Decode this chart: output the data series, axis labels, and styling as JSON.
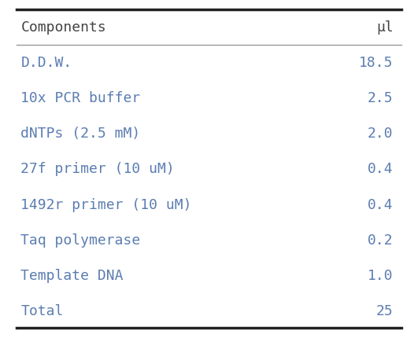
{
  "header": [
    "Components",
    "μl"
  ],
  "rows": [
    [
      "D.D.W.",
      "18.5"
    ],
    [
      "10x PCR buffer",
      "2.5"
    ],
    [
      "dNTPs (2.5 mM)",
      "2.0"
    ],
    [
      "27f primer (10 uM)",
      "0.4"
    ],
    [
      "1492r primer (10 uM)",
      "0.4"
    ],
    [
      "Taq polymerase",
      "0.2"
    ],
    [
      "Template DNA",
      "1.0"
    ],
    [
      "Total",
      "25"
    ]
  ],
  "text_color": "#5b7db1",
  "header_color": "#444444",
  "bg_color": "#ffffff",
  "thick_line_color": "#222222",
  "thin_line_color": "#999999",
  "font_size": 13,
  "header_font_size": 13
}
